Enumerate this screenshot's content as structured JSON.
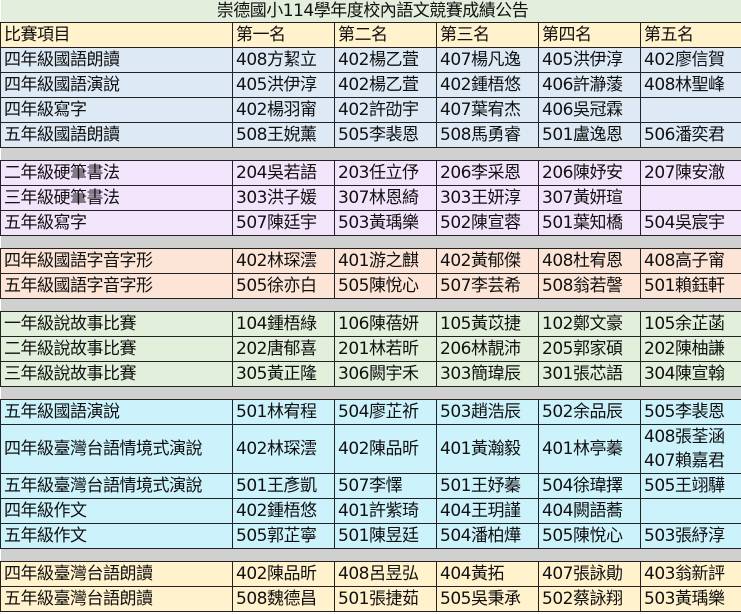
{
  "title": "崇德國小114學年度校內語文競賽成績公告",
  "headers": [
    "比賽項目",
    "第一名",
    "第二名",
    "第三名",
    "第四名",
    "第五名"
  ],
  "colors": {
    "title": "#e4eedd",
    "header": "#fff2cc",
    "separator": "#d0d0d0"
  },
  "groups": [
    {
      "color": "#dde9f5",
      "rows": [
        [
          "四年級國語朗讀",
          "408方絜立",
          "402楊乙萓",
          "407楊凡逸",
          "405洪伊淳",
          "402廖信賀"
        ],
        [
          "四年級國語演說",
          "405洪伊淳",
          "402楊乙萓",
          "402鍾梧悠",
          "406許瀞蔆",
          "408林聖峰"
        ],
        [
          "四年級寫字",
          "402楊羽甯",
          "402許劭宇",
          "407葉宥杰",
          "406吳冠霖",
          ""
        ],
        [
          "五年級國語朗讀",
          "508王婗薰",
          "505李裴恩",
          "508馬勇睿",
          "501盧逸恩",
          "506潘奕君"
        ]
      ]
    },
    {
      "color": "#f2e4fb",
      "rows": [
        [
          "二年級硬筆書法",
          "204吳若語",
          "203任立伃",
          "206李采恩",
          "206陳妤安",
          "207陳安澈"
        ],
        [
          "三年級硬筆書法",
          "303洪子媛",
          "307林恩綺",
          "303王妍淳",
          "307黃妍瑄",
          ""
        ],
        [
          "五年級寫字",
          "507陳廷宇",
          "503黃瑀樂",
          "502陳宣蓉",
          "501葉知橋",
          "504吳宸宇"
        ]
      ]
    },
    {
      "color": "#fce4d6",
      "rows": [
        [
          "四年級國語字音字形",
          "402林琛澐",
          "401游之麒",
          "402黃郁傑",
          "408杜宥恩",
          "408高子甯"
        ],
        [
          "五年級國語字音字形",
          "505徐亦白",
          "505陳悅心",
          "507李芸希",
          "508翁若謦",
          "501賴鈺軒"
        ]
      ]
    },
    {
      "color": "#e2efda",
      "rows": [
        [
          "一年級說故事比賽",
          "104鍾梧綠",
          "106陳蓓妍",
          "105黃苡捷",
          "102鄭文豪",
          "105余芷菡"
        ],
        [
          "二年級說故事比賽",
          "202唐郁喜",
          "201林若昕",
          "206林靚沛",
          "205郭家碩",
          "202陳柚謙"
        ],
        [
          "三年級說故事比賽",
          "305黃正隆",
          "306闕宇禾",
          "303簡瑋辰",
          "301張芯語",
          "304陳宣翰"
        ]
      ]
    },
    {
      "color": "#ccf2fc",
      "rows": [
        [
          "五年級國語演說",
          "501林宥程",
          "504廖芷祈",
          "503趙浩辰",
          "502余品辰",
          "505李裴恩"
        ],
        [
          "四年級臺灣台語情境式演說",
          "402林琛澐",
          "402陳品昕",
          "401黃瀚毅",
          "401林亭蓁",
          "408張荃涵\n407賴嘉君"
        ],
        [
          "五年級臺灣台語情境式演說",
          "501王彥凱",
          "507李懌",
          "501王妤蓁",
          "504徐瑋擇",
          "505王翊驊"
        ],
        [
          "四年級作文",
          "402鍾梧悠",
          "401許紫琦",
          "404王玥謹",
          "404闕語蕎",
          ""
        ],
        [
          "五年級作文",
          "505郭芷寧",
          "501陳昱廷",
          "504潘柏燁",
          "505陳悅心",
          "503張紓淳"
        ]
      ]
    },
    {
      "color": "#fff2cc",
      "rows": [
        [
          "四年級臺灣台語朗讀",
          "402陳品昕",
          "408呂昱弘",
          "404黃拓",
          "407張詠勛",
          "403翁新評"
        ],
        [
          "五年級臺灣台語朗讀",
          "508魏德昌",
          "501張捷茹",
          "505吳秉承",
          "502蔡詠翔",
          "503黃瑀樂"
        ]
      ]
    }
  ]
}
